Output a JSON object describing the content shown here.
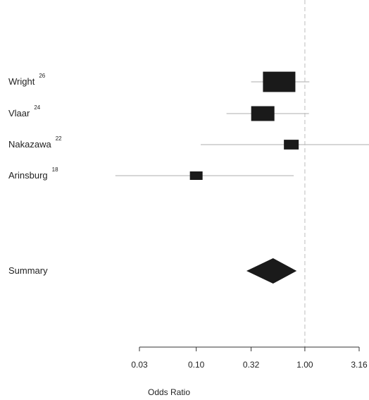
{
  "chart_data": {
    "type": "forest",
    "xlabel": "Odds Ratio",
    "x_scale": "log",
    "xlim": [
      0.03,
      3.16
    ],
    "ticks": [
      {
        "value": 0.03,
        "label": "0.03"
      },
      {
        "value": 0.1,
        "label": "0.10"
      },
      {
        "value": 0.32,
        "label": "0.32"
      },
      {
        "value": 1.0,
        "label": "1.00"
      },
      {
        "value": 3.16,
        "label": "3.16"
      }
    ],
    "reference_line": 1.0,
    "studies": [
      {
        "name": "Wright",
        "ref": "26",
        "or": 0.58,
        "ci": [
          0.32,
          1.1
        ],
        "weight": 0.38
      },
      {
        "name": "Vlaar",
        "ref": "24",
        "or": 0.41,
        "ci": [
          0.19,
          1.09
        ],
        "weight": 0.25
      },
      {
        "name": "Nakazawa",
        "ref": "22",
        "or": 0.75,
        "ci": [
          0.11,
          4.5
        ],
        "weight": 0.13
      },
      {
        "name": "Arinsburg",
        "ref": "18",
        "or": 0.1,
        "ci": [
          0.018,
          0.79
        ],
        "weight": 0.1
      }
    ],
    "summary": {
      "label": "Summary",
      "or": 0.51,
      "ci": [
        0.29,
        0.84
      ]
    }
  }
}
